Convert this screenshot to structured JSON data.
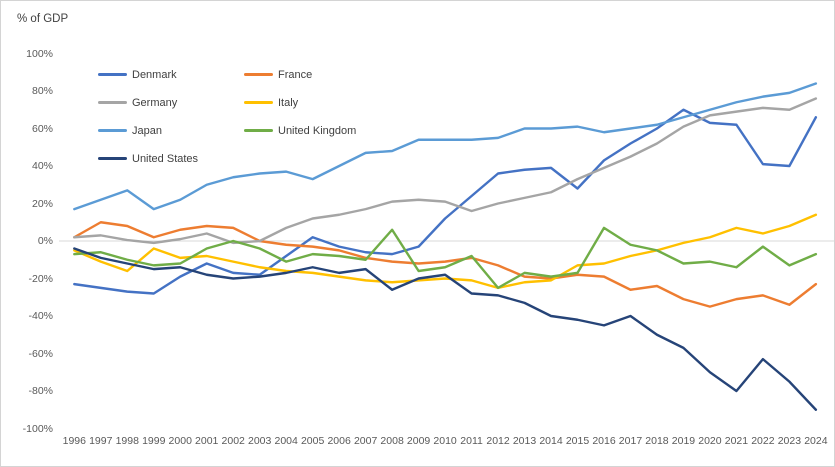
{
  "chart_data": {
    "type": "line",
    "title": "% of GDP",
    "x": [
      1996,
      1997,
      1998,
      1999,
      2000,
      2001,
      2002,
      2003,
      2004,
      2005,
      2006,
      2007,
      2008,
      2009,
      2010,
      2011,
      2012,
      2013,
      2014,
      2015,
      2016,
      2017,
      2018,
      2019,
      2020,
      2021,
      2022,
      2023,
      2024
    ],
    "series": [
      {
        "name": "Denmark",
        "color": "#4472C4",
        "values": [
          -23,
          -25,
          -27,
          -28,
          -19,
          -12,
          -17,
          -18,
          -8,
          2,
          -3,
          -6,
          -7,
          -3,
          12,
          24,
          36,
          38,
          39,
          28,
          43,
          52,
          60,
          70,
          63,
          62,
          41,
          40,
          66
        ]
      },
      {
        "name": "France",
        "color": "#ED7D31",
        "values": [
          2,
          10,
          8,
          2,
          6,
          8,
          7,
          0,
          -2,
          -3,
          -5,
          -9,
          -11,
          -12,
          -11,
          -9,
          -13,
          -19,
          -20,
          -18,
          -19,
          -26,
          -24,
          -31,
          -35,
          -31,
          -29,
          -34,
          -23
        ]
      },
      {
        "name": "Germany",
        "color": "#A5A5A5",
        "values": [
          2,
          3,
          0.5,
          -1,
          1,
          4,
          -1,
          0,
          7,
          12,
          14,
          17,
          21,
          22,
          21,
          16,
          20,
          23,
          26,
          33,
          39,
          45,
          52,
          61,
          67,
          69,
          71,
          70,
          76
        ]
      },
      {
        "name": "Italy",
        "color": "#FFC000",
        "values": [
          -5,
          -11,
          -16,
          -4,
          -9,
          -8,
          -11,
          -14,
          -16,
          -17,
          -19,
          -21,
          -22,
          -21,
          -20,
          -21,
          -25,
          -22,
          -21,
          -13,
          -12,
          -8,
          -5,
          -1,
          2,
          7,
          4,
          8,
          14
        ]
      },
      {
        "name": "Japan",
        "color": "#5B9BD5",
        "values": [
          17,
          22,
          27,
          17,
          22,
          30,
          34,
          36,
          37,
          33,
          40,
          47,
          48,
          54,
          54,
          54,
          55,
          60,
          60,
          61,
          58,
          60,
          62,
          66,
          70,
          74,
          77,
          79,
          84
        ]
      },
      {
        "name": "United Kingdom",
        "color": "#70AD47",
        "values": [
          -7,
          -6,
          -10,
          -13,
          -12,
          -4,
          0,
          -4,
          -11,
          -7,
          -8,
          -10,
          6,
          -16,
          -14,
          -8,
          -25,
          -17,
          -19,
          -17,
          7,
          -2,
          -5,
          -12,
          -11,
          -14,
          -3,
          -13,
          -7
        ]
      },
      {
        "name": "United States",
        "color": "#264478",
        "values": [
          -4,
          -9,
          -12,
          -15,
          -14,
          -18,
          -20,
          -19,
          -17,
          -14,
          -17,
          -15,
          -26,
          -20,
          -18,
          -28,
          -29,
          -33,
          -40,
          -42,
          -45,
          -40,
          -50,
          -57,
          -70,
          -80,
          -63,
          -75,
          -90
        ]
      }
    ],
    "ylim": [
      -100,
      100
    ],
    "ytick_values": [
      100,
      80,
      60,
      40,
      20,
      0,
      -20,
      -40,
      -60,
      -80,
      -100
    ],
    "ytick_labels": [
      "100%",
      "80%",
      "60%",
      "40%",
      "20%",
      "0%",
      "-20%",
      "-40%",
      "-60%",
      "-80%",
      "-100%"
    ],
    "xtick_labels": [
      "1996",
      "1997",
      "1998",
      "1999",
      "2000",
      "2001",
      "2002",
      "2003",
      "2004",
      "2005",
      "2006",
      "2007",
      "2008",
      "2009",
      "2010",
      "2011",
      "2012",
      "2013",
      "2014",
      "2015",
      "2016",
      "2017",
      "2018",
      "2019",
      "2020",
      "2021",
      "2022",
      "2023",
      "2024"
    ],
    "grid": "zero-line-only",
    "gridline_color": "#D9D9D9",
    "legend_position": "top-left",
    "legend_columns": [
      [
        "Denmark",
        "Germany",
        "Japan",
        "United States"
      ],
      [
        "France",
        "Italy",
        "United Kingdom"
      ]
    ]
  }
}
